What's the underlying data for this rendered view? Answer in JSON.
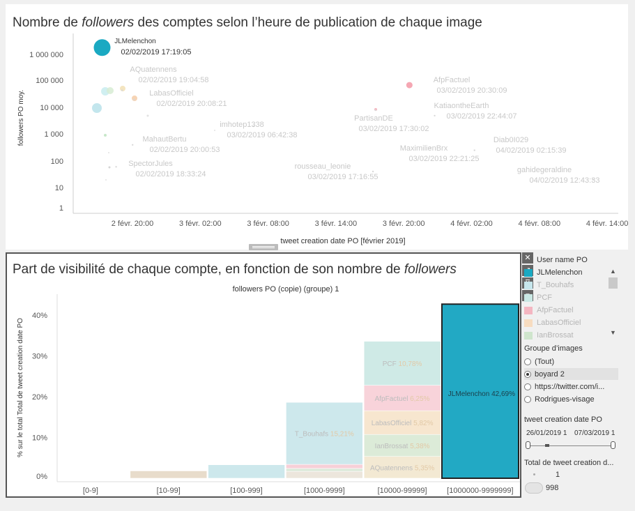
{
  "top": {
    "title_pre": "Nombre de ",
    "title_italic": "followers",
    "title_post": " des comptes selon l’heure de publication de chaque image",
    "y_label": "followers PO moy.",
    "x_label": "tweet creation date PO [février 2019]",
    "y_ticks": [
      "1 000 000",
      "100 000",
      "10 000",
      "1 000",
      "100",
      "10",
      "1"
    ],
    "x_ticks": [
      "2 févr. 20:00",
      "3 févr. 02:00",
      "3 févr. 08:00",
      "3 févr. 14:00",
      "3 févr. 20:00",
      "4 févr. 02:00",
      "4 févr. 08:00",
      "4 févr. 14:00"
    ],
    "labels": [
      {
        "name": "JLMelenchon",
        "date": "02/02/2019 17:19:05",
        "bold": true
      },
      {
        "name": "AQuatennens",
        "date": "02/02/2019 19:04:58"
      },
      {
        "name": "LabasOfficiel",
        "date": "02/02/2019 20:08:21"
      },
      {
        "name": "imhotep1338",
        "date": "03/02/2019 06:42:38"
      },
      {
        "name": "MahautBertu",
        "date": "02/02/2019 20:00:53"
      },
      {
        "name": "SpectorJules",
        "date": "02/02/2019 18:33:24"
      },
      {
        "name": "PartisanDE",
        "date": "03/02/2019 17:30:02"
      },
      {
        "name": "rousseau_leonie",
        "date": "03/02/2019 17:16:55"
      },
      {
        "name": "AfpFactuel",
        "date": "03/02/2019 20:30:09"
      },
      {
        "name": "KatiaontheEarth",
        "date": "03/02/2019 22:44:07"
      },
      {
        "name": "MaximilienBrx",
        "date": "03/02/2019 22:21:25"
      },
      {
        "name": "Diab0I029",
        "date": "04/02/2019 02:15:39"
      },
      {
        "name": "gahidegeraldine",
        "date": "04/02/2019 12:43:33"
      }
    ]
  },
  "bottom": {
    "title_pre": "Part de visibilité de chaque compte, en fonction de son nombre de ",
    "title_italic": "followers",
    "header": "followers PO (copie) (groupe) 1",
    "y_label": "% sur le total Total de tweet creation date PO",
    "y_ticks": [
      "40%",
      "30%",
      "20%",
      "10%",
      "0%"
    ],
    "seg_labels": [
      {
        "name": "PCF",
        "pct": "10,78%"
      },
      {
        "name": "AfpFactuel",
        "pct": "6,25%"
      },
      {
        "name": "LabasOfficiel",
        "pct": "5,82%"
      },
      {
        "name": "IanBrossat",
        "pct": "5,38%"
      },
      {
        "name": "AQuatennens",
        "pct": "5,35%"
      },
      {
        "name": "T_Bouhafs",
        "pct": "15,21%"
      },
      {
        "name": "JLMelenchon",
        "pct": "42,69%"
      }
    ]
  },
  "chart_data": [
    {
      "type": "scatter",
      "title": "Nombre de followers des comptes selon l’heure de publication de chaque image",
      "xlabel": "tweet creation date PO [février 2019]",
      "ylabel": "followers PO moy.",
      "y_scale": "log",
      "ylim": [
        1,
        2000000
      ],
      "grid": false,
      "points": [
        {
          "name": "JLMelenchon",
          "x": "2019-02-02 17:19:05",
          "y": 1800000,
          "color": "#1aa9c2"
        },
        {
          "name": "SpectorJules",
          "x": "2019-02-02 18:33:24",
          "y": 60
        },
        {
          "name": "AQuatennens",
          "x": "2019-02-02 19:04:58",
          "y": 45000
        },
        {
          "name": "MahautBertu",
          "x": "2019-02-02 20:00:53",
          "y": 400
        },
        {
          "name": "LabasOfficiel",
          "x": "2019-02-02 20:08:21",
          "y": 20000
        },
        {
          "name": "imhotep1338",
          "x": "2019-02-03 06:42:38",
          "y": 2000
        },
        {
          "name": "rousseau_leonie",
          "x": "2019-02-03 17:16:55",
          "y": 40
        },
        {
          "name": "PartisanDE",
          "x": "2019-02-03 17:30:02",
          "y": 8000
        },
        {
          "name": "AfpFactuel",
          "x": "2019-02-03 20:30:09",
          "y": 70000
        },
        {
          "name": "MaximilienBrx",
          "x": "2019-02-03 22:21:25",
          "y": 300
        },
        {
          "name": "KatiaontheEarth",
          "x": "2019-02-03 22:44:07",
          "y": 5000
        },
        {
          "name": "Diab0I029",
          "x": "2019-02-04 02:15:39",
          "y": 250
        },
        {
          "name": "gahidegeraldine",
          "x": "2019-02-04 12:43:33",
          "y": 20
        }
      ]
    },
    {
      "type": "bar",
      "stacked": true,
      "title": "Part de visibilité de chaque compte, en fonction de son nombre de followers",
      "xlabel": "followers PO (copie) (groupe) 1",
      "ylabel": "% sur le total Total de tweet creation date PO",
      "ylim": [
        0,
        45
      ],
      "categories": [
        "[0-9]",
        "[10-99]",
        "[100-999]",
        "[1000-9999]",
        "[10000-99999]",
        "[1000000-9999999]"
      ],
      "stacks": [
        [],
        [
          {
            "name": "",
            "value": 1.8,
            "color": "#e8dccb"
          }
        ],
        [
          {
            "name": "",
            "value": 3.3,
            "color": "#cde8ec"
          }
        ],
        [
          {
            "name": "",
            "value": 1.7,
            "color": "#ece6dc"
          },
          {
            "name": "",
            "value": 0.7,
            "color": "#dbe9d9"
          },
          {
            "name": "",
            "value": 1.0,
            "color": "#f7d0d8"
          },
          {
            "name": "T_Bouhafs",
            "value": 15.21,
            "color": "#cde8ec"
          }
        ],
        [
          {
            "name": "AQuatennens",
            "value": 5.35,
            "color": "#f3e9d3"
          },
          {
            "name": "IanBrossat",
            "value": 5.38,
            "color": "#dcebd8"
          },
          {
            "name": "LabasOfficiel",
            "value": 5.82,
            "color": "#f7e6cf"
          },
          {
            "name": "AfpFactuel",
            "value": 6.25,
            "color": "#f8d3da"
          },
          {
            "name": "PCF",
            "value": 10.78,
            "color": "#cfeae6"
          }
        ],
        [
          {
            "name": "JLMelenchon",
            "value": 42.69,
            "color": "#22a9c4"
          }
        ]
      ]
    }
  ],
  "sidebar": {
    "legend_title": "User name PO",
    "legend_items": [
      {
        "name": "JLMelenchon",
        "color": "#1aa9c2"
      },
      {
        "name": "T_Bouhafs",
        "color": "#c6e6ec"
      },
      {
        "name": "PCF",
        "color": "#c9e8e4"
      },
      {
        "name": "AfpFactuel",
        "color": "#f4b6c1"
      },
      {
        "name": "LabasOfficiel",
        "color": "#f7dcc0"
      },
      {
        "name": "IanBrossat",
        "color": "#cfe5cc"
      }
    ],
    "group_title": "Groupe d’images",
    "group_options": [
      "(Tout)",
      "boyard 2",
      "https://twitter.com/i...",
      "Rodrigues-visage"
    ],
    "group_selected": 1,
    "date_title": "tweet creation date PO",
    "date_from": "26/01/2019 1",
    "date_to": "07/03/2019 1",
    "size_title": "Total de tweet creation d...",
    "size_min": "1",
    "size_max": "998"
  }
}
